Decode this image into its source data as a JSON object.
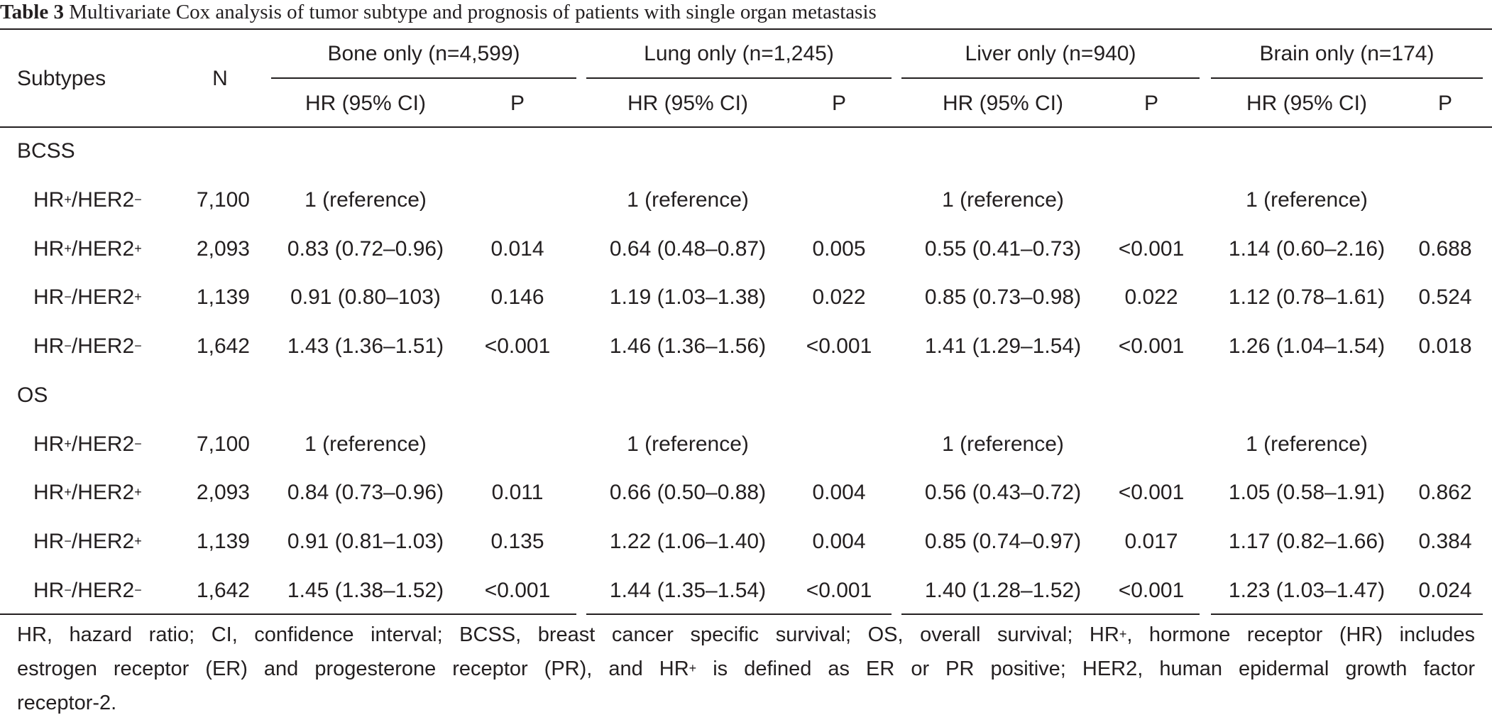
{
  "caption": {
    "number": "Table 3",
    "title": "Multivariate Cox analysis of tumor subtype and prognosis of patients with single organ metastasis"
  },
  "header": {
    "subtypes": "Subtypes",
    "n": "N",
    "groups": [
      {
        "label": "Bone only (n=4,599)",
        "hr": "HR (95% CI)",
        "p": "P"
      },
      {
        "label": "Lung only (n=1,245)",
        "hr": "HR (95% CI)",
        "p": "P"
      },
      {
        "label": "Liver only (n=940)",
        "hr": "HR (95% CI)",
        "p": "P"
      },
      {
        "label": "Brain only (n=174)",
        "hr": "HR (95% CI)",
        "p": "P"
      }
    ]
  },
  "sections": [
    {
      "label": "BCSS",
      "rows": [
        {
          "hr_sign": "+",
          "her2_sign": "−",
          "n": "7,100",
          "cells": [
            [
              "1 (reference)",
              ""
            ],
            [
              "1 (reference)",
              ""
            ],
            [
              "1 (reference)",
              ""
            ],
            [
              "1 (reference)",
              ""
            ]
          ]
        },
        {
          "hr_sign": "+",
          "her2_sign": "+",
          "n": "2,093",
          "cells": [
            [
              "0.83 (0.72–0.96)",
              "0.014"
            ],
            [
              "0.64 (0.48–0.87)",
              "0.005"
            ],
            [
              "0.55 (0.41–0.73)",
              "<0.001"
            ],
            [
              "1.14 (0.60–2.16)",
              "0.688"
            ]
          ]
        },
        {
          "hr_sign": "−",
          "her2_sign": "+",
          "n": "1,139",
          "cells": [
            [
              "0.91 (0.80–103)",
              "0.146"
            ],
            [
              "1.19 (1.03–1.38)",
              "0.022"
            ],
            [
              "0.85 (0.73–0.98)",
              "0.022"
            ],
            [
              "1.12 (0.78–1.61)",
              "0.524"
            ]
          ]
        },
        {
          "hr_sign": "−",
          "her2_sign": "−",
          "n": "1,642",
          "cells": [
            [
              "1.43 (1.36–1.51)",
              "<0.001"
            ],
            [
              "1.46 (1.36–1.56)",
              "<0.001"
            ],
            [
              "1.41 (1.29–1.54)",
              "<0.001"
            ],
            [
              "1.26 (1.04–1.54)",
              "0.018"
            ]
          ]
        }
      ]
    },
    {
      "label": "OS",
      "rows": [
        {
          "hr_sign": "+",
          "her2_sign": "−",
          "n": "7,100",
          "cells": [
            [
              "1 (reference)",
              ""
            ],
            [
              "1 (reference)",
              ""
            ],
            [
              "1 (reference)",
              ""
            ],
            [
              "1 (reference)",
              ""
            ]
          ]
        },
        {
          "hr_sign": "+",
          "her2_sign": "+",
          "n": "2,093",
          "cells": [
            [
              "0.84 (0.73–0.96)",
              "0.011"
            ],
            [
              "0.66 (0.50–0.88)",
              "0.004"
            ],
            [
              "0.56 (0.43–0.72)",
              "<0.001"
            ],
            [
              "1.05 (0.58–1.91)",
              "0.862"
            ]
          ]
        },
        {
          "hr_sign": "−",
          "her2_sign": "+",
          "n": "1,139",
          "cells": [
            [
              "0.91 (0.81–1.03)",
              "0.135"
            ],
            [
              "1.22 (1.06–1.40)",
              "0.004"
            ],
            [
              "0.85 (0.74–0.97)",
              "0.017"
            ],
            [
              "1.17 (0.82–1.66)",
              "0.384"
            ]
          ]
        },
        {
          "hr_sign": "−",
          "her2_sign": "−",
          "n": "1,642",
          "cells": [
            [
              "1.45 (1.38–1.52)",
              "<0.001"
            ],
            [
              "1.44 (1.35–1.54)",
              "<0.001"
            ],
            [
              "1.40 (1.28–1.52)",
              "<0.001"
            ],
            [
              "1.23 (1.03–1.47)",
              "0.024"
            ]
          ]
        }
      ]
    }
  ],
  "footnote": {
    "line1": "HR, hazard ratio; CI, confidence interval; BCSS, breast cancer specific survival; OS, overall survival; HR",
    "line1_sup": "+",
    "line1_end": ", hormone receptor (HR) includes",
    "line2a": "estrogen receptor (ER) and progesterone receptor (PR), and HR",
    "line2_sup": "+",
    "line2b": " is defined as ER or PR positive; HER2, human epidermal growth factor",
    "line3": "receptor-2."
  }
}
